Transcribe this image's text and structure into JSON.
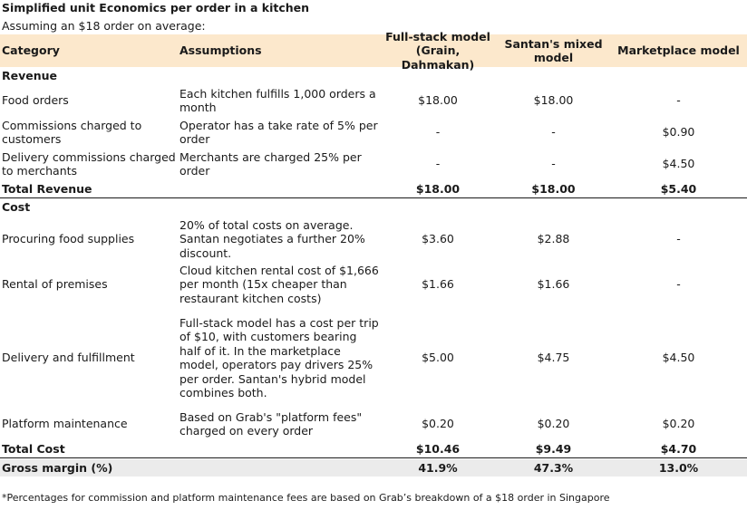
{
  "title": "Simplified unit Economics per order in a kitchen",
  "subtitle": "Assuming an $18 order on average:",
  "header": {
    "category": "Category",
    "assumptions": "Assumptions",
    "fullstack": "Full-stack model (Grain, Dahmakan)",
    "santan": "Santan's mixed model",
    "marketplace": "Marketplace model"
  },
  "revenue": {
    "section_label": "Revenue",
    "rows": [
      {
        "category": "Food orders",
        "assumption": "Each kitchen fulfills 1,000 orders a month",
        "fullstack": "$18.00",
        "santan": "$18.00",
        "marketplace": "-"
      },
      {
        "category": "Commissions charged to customers",
        "assumption": "Operator has a take rate of 5% per order",
        "fullstack": "-",
        "santan": "-",
        "marketplace": "$0.90"
      },
      {
        "category": "Delivery commissions charged to merchants",
        "assumption": "Merchants are charged 25% per order",
        "fullstack": "-",
        "santan": "-",
        "marketplace": "$4.50"
      }
    ],
    "total": {
      "category": "Total Revenue",
      "fullstack": "$18.00",
      "santan": "$18.00",
      "marketplace": "$5.40"
    }
  },
  "cost": {
    "section_label": "Cost",
    "rows": [
      {
        "category": "Procuring food supplies",
        "assumption": "20% of total costs on average. Santan negotiates a further 20% discount.",
        "fullstack": "$3.60",
        "santan": "$2.88",
        "marketplace": "-"
      },
      {
        "category": "Rental of premises",
        "assumption": "Cloud kitchen rental cost of $1,666 per month (15x cheaper than restaurant kitchen costs)",
        "fullstack": "$1.66",
        "santan": "$1.66",
        "marketplace": "-"
      },
      {
        "category": "Delivery and fulfillment",
        "assumption": "Full-stack model has a cost per trip of $10, with customers bearing half of it. In the marketplace model, operators pay drivers 25% per order. Santan's hybrid model combines both.",
        "fullstack": "$5.00",
        "santan": "$4.75",
        "marketplace": "$4.50"
      },
      {
        "category": "Platform maintenance",
        "assumption": "Based on Grab's \"platform fees\" charged on every order",
        "fullstack": "$0.20",
        "santan": "$0.20",
        "marketplace": "$0.20"
      }
    ],
    "total": {
      "category": "Total Cost",
      "fullstack": "$10.46",
      "santan": "$9.49",
      "marketplace": "$4.70"
    }
  },
  "gross_margin": {
    "category": "Gross margin (%)",
    "fullstack": "41.9%",
    "santan": "47.3%",
    "marketplace": "13.0%"
  },
  "footnote": "*Percentages for commission and platform maintenance fees are based on Grab’s breakdown of a $18 order in Singapore",
  "colors": {
    "header_bg": "#fce8cc",
    "margin_bg": "#ebebeb"
  }
}
